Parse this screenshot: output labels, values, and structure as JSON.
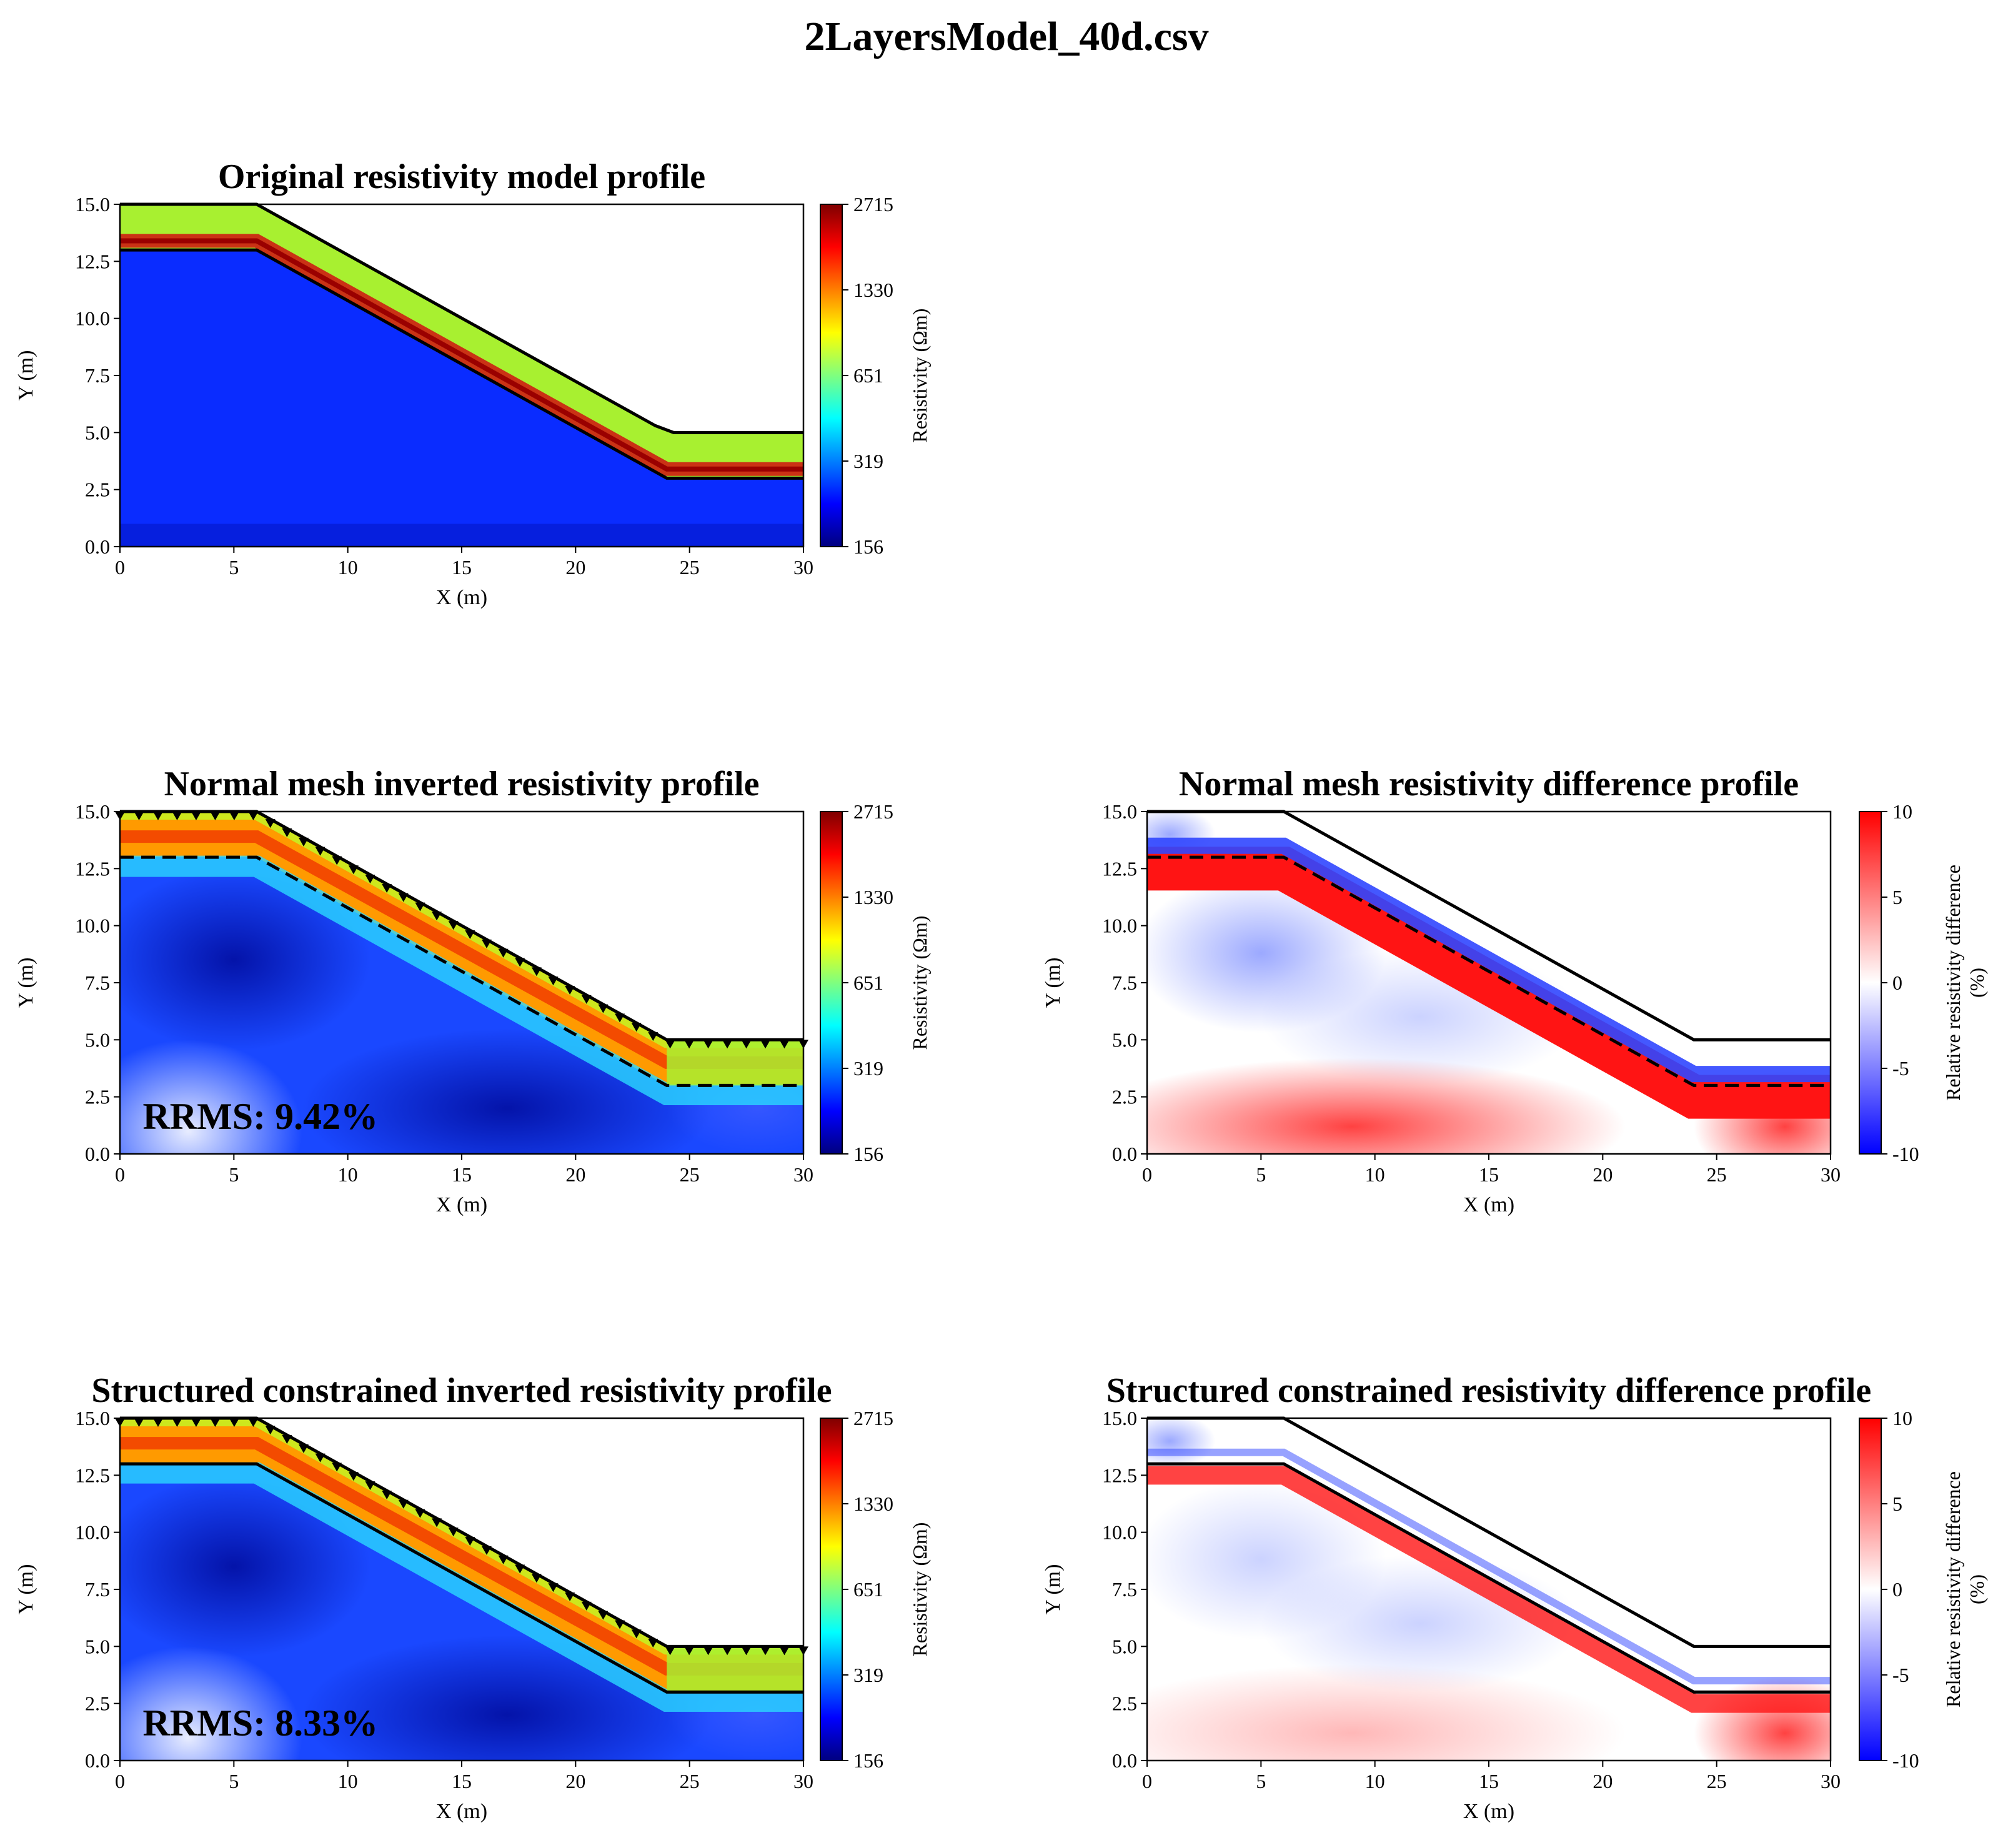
{
  "figure_title": "2LayersModel_40d.csv",
  "chart_data": [
    {
      "id": "original",
      "type": "heatmap",
      "title": "Original resistivity model profile",
      "xlabel": "X (m)",
      "ylabel": "Y (m)",
      "xlim": [
        0,
        30
      ],
      "ylim": [
        0,
        15
      ],
      "xticks": [
        "0",
        "5",
        "10",
        "15",
        "20",
        "25",
        "30"
      ],
      "yticks": [
        "0.0",
        "2.5",
        "5.0",
        "7.5",
        "10.0",
        "12.5",
        "15.0"
      ],
      "colorbar": {
        "label": "Resistivity (Ωm)",
        "ticks": [
          "156",
          "319",
          "651",
          "1330",
          "2715"
        ],
        "colormap": "jet"
      },
      "surface": [
        [
          0,
          15
        ],
        [
          6,
          15
        ],
        [
          23.5,
          5.3
        ],
        [
          24.3,
          5
        ],
        [
          30,
          5
        ]
      ],
      "interface": [
        [
          0,
          13
        ],
        [
          6,
          13
        ],
        [
          24,
          3
        ],
        [
          30,
          3
        ]
      ],
      "layers": [
        {
          "name": "upper",
          "resistivity_ohm_m": 900,
          "color": "#a8f030"
        },
        {
          "name": "lower",
          "resistivity_ohm_m": 200,
          "color": "#0a2cff"
        }
      ]
    },
    {
      "id": "normal-inversion",
      "type": "heatmap",
      "title": "Normal mesh inverted resistivity profile",
      "xlabel": "X (m)",
      "ylabel": "Y (m)",
      "xlim": [
        0,
        30
      ],
      "ylim": [
        0,
        15
      ],
      "xticks": [
        "0",
        "5",
        "10",
        "15",
        "20",
        "25",
        "30"
      ],
      "yticks": [
        "0.0",
        "2.5",
        "5.0",
        "7.5",
        "10.0",
        "12.5",
        "15.0"
      ],
      "colorbar": {
        "label": "Resistivity (Ωm)",
        "ticks": [
          "156",
          "319",
          "651",
          "1330",
          "2715"
        ],
        "colormap": "jet"
      },
      "annotation": "RRMS: 9.42%",
      "surface": [
        [
          0,
          15
        ],
        [
          6,
          15
        ],
        [
          24,
          5
        ],
        [
          30,
          5
        ]
      ],
      "interface": [
        [
          0,
          13
        ],
        [
          6,
          13
        ],
        [
          24,
          3
        ],
        [
          30,
          3
        ]
      ],
      "interface_style": "dashed",
      "electrode_markers": true
    },
    {
      "id": "normal-difference",
      "type": "heatmap",
      "title": "Normal mesh resistivity difference profile",
      "xlabel": "X (m)",
      "ylabel": "Y (m)",
      "xlim": [
        0,
        30
      ],
      "ylim": [
        0,
        15
      ],
      "xticks": [
        "0",
        "5",
        "10",
        "15",
        "20",
        "25",
        "30"
      ],
      "yticks": [
        "0.0",
        "2.5",
        "5.0",
        "7.5",
        "10.0",
        "12.5",
        "15.0"
      ],
      "colorbar": {
        "label": "Relative resistivity difference (%)",
        "ticks": [
          "-10",
          "-5",
          "0",
          "5",
          "10"
        ],
        "colormap": "bwr"
      },
      "surface": [
        [
          0,
          15
        ],
        [
          6,
          15
        ],
        [
          24,
          5
        ],
        [
          30,
          5
        ]
      ],
      "interface": [
        [
          0,
          13
        ],
        [
          6,
          13
        ],
        [
          24,
          3
        ],
        [
          30,
          3
        ]
      ],
      "interface_style": "dashed"
    },
    {
      "id": "structured-inversion",
      "type": "heatmap",
      "title": "Structured constrained inverted resistivity profile",
      "xlabel": "X (m)",
      "ylabel": "Y (m)",
      "xlim": [
        0,
        30
      ],
      "ylim": [
        0,
        15
      ],
      "xticks": [
        "0",
        "5",
        "10",
        "15",
        "20",
        "25",
        "30"
      ],
      "yticks": [
        "0.0",
        "2.5",
        "5.0",
        "7.5",
        "10.0",
        "12.5",
        "15.0"
      ],
      "colorbar": {
        "label": "Resistivity (Ωm)",
        "ticks": [
          "156",
          "319",
          "651",
          "1330",
          "2715"
        ],
        "colormap": "jet"
      },
      "annotation": "RRMS: 8.33%",
      "surface": [
        [
          0,
          15
        ],
        [
          6,
          15
        ],
        [
          24,
          5
        ],
        [
          30,
          5
        ]
      ],
      "interface": [
        [
          0,
          13
        ],
        [
          6,
          13
        ],
        [
          24,
          3
        ],
        [
          30,
          3
        ]
      ],
      "interface_style": "solid",
      "electrode_markers": true
    },
    {
      "id": "structured-difference",
      "type": "heatmap",
      "title": "Structured constrained resistivity difference profile",
      "xlabel": "X (m)",
      "ylabel": "Y (m)",
      "xlim": [
        0,
        30
      ],
      "ylim": [
        0,
        15
      ],
      "xticks": [
        "0",
        "5",
        "10",
        "15",
        "20",
        "25",
        "30"
      ],
      "yticks": [
        "0.0",
        "2.5",
        "5.0",
        "7.5",
        "10.0",
        "12.5",
        "15.0"
      ],
      "colorbar": {
        "label": "Relative resistivity difference (%)",
        "ticks": [
          "-10",
          "-5",
          "0",
          "5",
          "10"
        ],
        "colormap": "bwr"
      },
      "surface": [
        [
          0,
          15
        ],
        [
          6,
          15
        ],
        [
          24,
          5
        ],
        [
          30,
          5
        ]
      ],
      "interface": [
        [
          0,
          13
        ],
        [
          6,
          13
        ],
        [
          24,
          3
        ],
        [
          30,
          3
        ]
      ],
      "interface_style": "solid"
    }
  ]
}
